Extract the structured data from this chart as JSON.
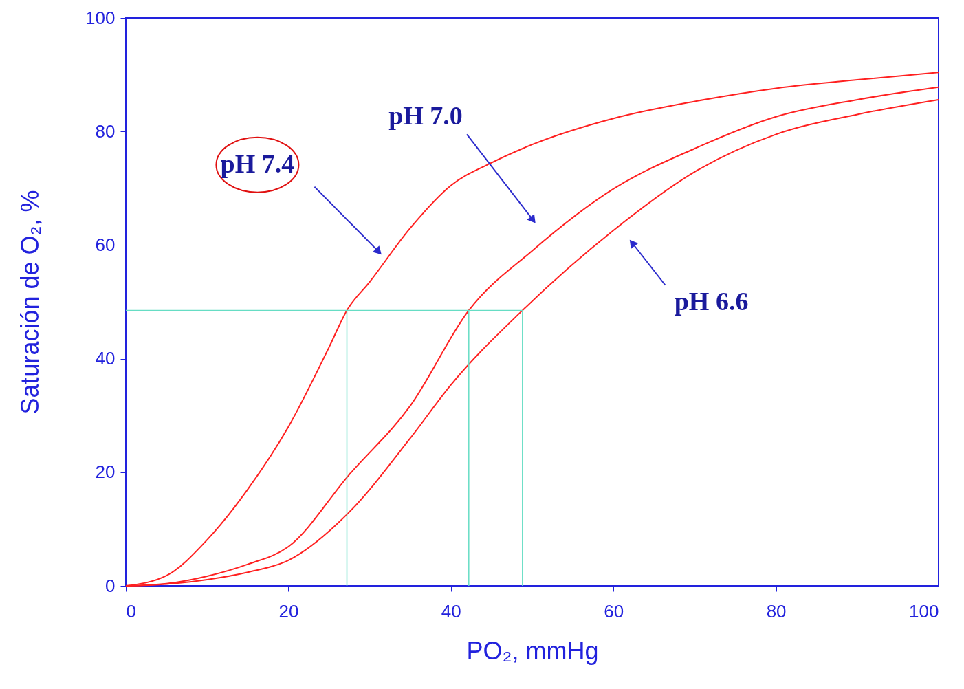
{
  "chart_data": {
    "type": "line",
    "xlabel": "PO₂, mmHg",
    "ylabel": "Saturación de O₂, %",
    "xlim": [
      0,
      100
    ],
    "ylim": [
      0,
      100
    ],
    "xticks": [
      0,
      20,
      40,
      60,
      80,
      100
    ],
    "yticks": [
      0,
      20,
      40,
      60,
      80,
      100
    ],
    "annotations": [
      {
        "text": "pH 7.4",
        "x": 31,
        "y": 59
      },
      {
        "text": "pH 7.0",
        "x": 50,
        "y": 64.6
      },
      {
        "text": "pH 6.6",
        "x": 62.4,
        "y": 60.2
      }
    ],
    "grid": false,
    "legend": false,
    "marker": "none",
    "line_style": "solid",
    "series": [
      {
        "color": "#ff2020",
        "x": [
          0,
          5,
          10,
          15,
          20,
          25,
          27.2,
          30,
          35,
          40,
          45,
          50,
          60,
          70,
          80,
          90,
          100
        ],
        "values": [
          0,
          1.8,
          8.1,
          17,
          28,
          42,
          48.5,
          53.5,
          63,
          70.5,
          74.5,
          77.7,
          82.3,
          85.3,
          87.6,
          89.1,
          90.4
        ]
      },
      {
        "color": "#ff2020",
        "x": [
          0,
          5,
          10,
          15,
          20,
          27.5,
          35,
          42.2,
          50,
          60,
          70,
          80,
          90,
          100
        ],
        "values": [
          0,
          0.4,
          1.7,
          3.8,
          6.9,
          19.6,
          31.7,
          48.5,
          59,
          69.9,
          77,
          82.6,
          85.6,
          87.8
        ]
      },
      {
        "color": "#ff2020",
        "x": [
          0,
          5,
          10,
          15,
          20,
          27.5,
          35,
          40,
          48.8,
          60,
          70,
          80,
          90,
          100
        ],
        "values": [
          0,
          0.3,
          1.1,
          2.4,
          4.5,
          13,
          26,
          35.4,
          48.5,
          62.6,
          72.9,
          79.5,
          83,
          85.6
        ]
      }
    ],
    "ref_lines": [
      {
        "axis": "y",
        "value": 48.5,
        "color": "#66ddc4"
      },
      {
        "axis": "x",
        "value": 27.2,
        "color": "#66ddc4"
      },
      {
        "axis": "x",
        "value": 42.2,
        "color": "#66ddc4"
      },
      {
        "axis": "x",
        "value": 48.8,
        "color": "#66ddc4"
      }
    ]
  }
}
